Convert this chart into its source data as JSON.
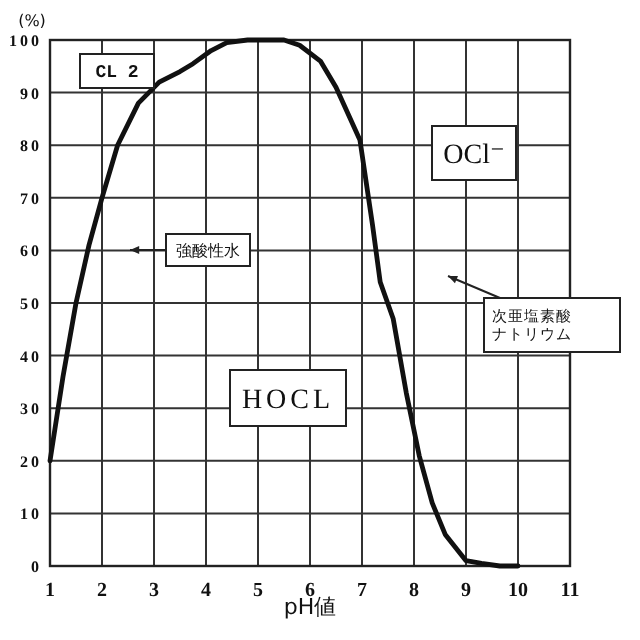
{
  "chart_data": {
    "type": "line",
    "xlabel": "pH値",
    "ylabel": "(%)",
    "x": [
      1,
      1.25,
      1.5,
      1.75,
      2,
      2.3,
      2.7,
      3.1,
      3.5,
      3.75,
      4.1,
      4.4,
      4.8,
      5,
      5.5,
      5.8,
      6.2,
      6.5,
      6.96,
      7.2,
      7.35,
      7.6,
      7.85,
      8.1,
      8.35,
      8.6,
      9,
      9.3,
      9.65,
      10
    ],
    "series": [
      {
        "color": "#111111",
        "values": [
          20,
          36,
          50,
          61,
          70,
          80,
          88,
          92,
          94,
          95.5,
          98,
          99.5,
          100,
          100,
          100,
          99,
          96,
          91,
          81,
          65,
          54,
          47,
          33,
          21,
          12,
          6,
          1,
          0.5,
          0,
          0
        ]
      }
    ],
    "xlim": [
      1,
      11
    ],
    "ylim": [
      0,
      100
    ],
    "xticks": [
      1,
      2,
      3,
      4,
      5,
      6,
      7,
      8,
      9,
      10,
      11
    ],
    "yticks": [
      0,
      10,
      20,
      30,
      40,
      50,
      60,
      70,
      80,
      90,
      100
    ],
    "grid": true,
    "marker": "none",
    "line_style": "solid",
    "annotations": [
      "CL 2",
      "OCl⁻",
      "HOCL",
      "強酸性水",
      "次亜塩素酸ナトリウム"
    ]
  }
}
